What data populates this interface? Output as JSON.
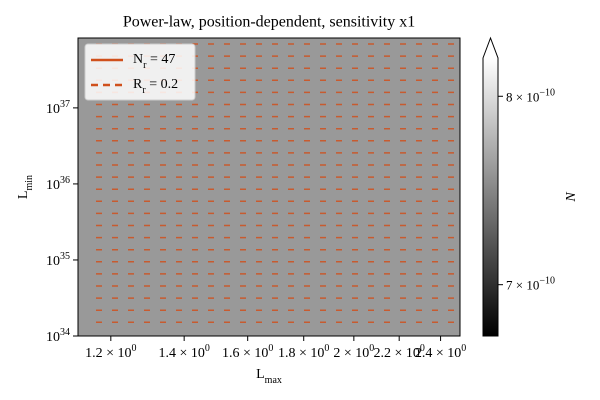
{
  "chart_data": {
    "type": "contour",
    "title": "Power-law, position-dependent, sensitivity x1",
    "xlabel": [
      "L",
      "max"
    ],
    "ylabel": [
      "L",
      "min"
    ],
    "xscale": "log",
    "yscale": "log",
    "xlim": [
      1.12,
      2.5
    ],
    "ylim": [
      1e+34,
      8.3e+37
    ],
    "xticks": [
      {
        "value": 1.2,
        "label": [
          "1.2 × 10",
          "0"
        ]
      },
      {
        "value": 1.4,
        "label": [
          "1.4 × 10",
          "0"
        ]
      },
      {
        "value": 1.6,
        "label": [
          "1.6 × 10",
          "0"
        ]
      },
      {
        "value": 1.8,
        "label": [
          "1.8 × 10",
          "0"
        ]
      },
      {
        "value": 2.0,
        "label": [
          "2 × 10",
          "0"
        ]
      },
      {
        "value": 2.2,
        "label": [
          "2.2 × 10",
          "0"
        ]
      },
      {
        "value": 2.4,
        "label": [
          "2.4 × 10",
          "0"
        ]
      }
    ],
    "yticks": [
      {
        "value": 1e+34,
        "label": [
          "10",
          "34"
        ]
      },
      {
        "value": 1e+35,
        "label": [
          "10",
          "35"
        ]
      },
      {
        "value": 1e+36,
        "label": [
          "10",
          "36"
        ]
      },
      {
        "value": 1e+37,
        "label": [
          "10",
          "37"
        ]
      }
    ],
    "fill_color": "#999999",
    "series": [
      {
        "name": [
          "N",
          "r",
          " = 47"
        ],
        "color": "#d0501c",
        "linestyle": "solid"
      },
      {
        "name": [
          "R",
          "r",
          " = 0.2"
        ],
        "color": "#d0501c",
        "linestyle": "dashed"
      }
    ],
    "legend": "upper left",
    "colorbar": {
      "label": "N",
      "scale": "log",
      "lim": [
        6.75e-10,
        8.22e-10
      ],
      "ticks": [
        {
          "value": 8e-10,
          "label": [
            "8 × 10",
            "−10"
          ]
        },
        {
          "value": 7e-10,
          "label": [
            "7 × 10",
            "−10"
          ]
        }
      ],
      "colors": [
        "#000000",
        "#ffffff"
      ],
      "extend": "max"
    }
  }
}
